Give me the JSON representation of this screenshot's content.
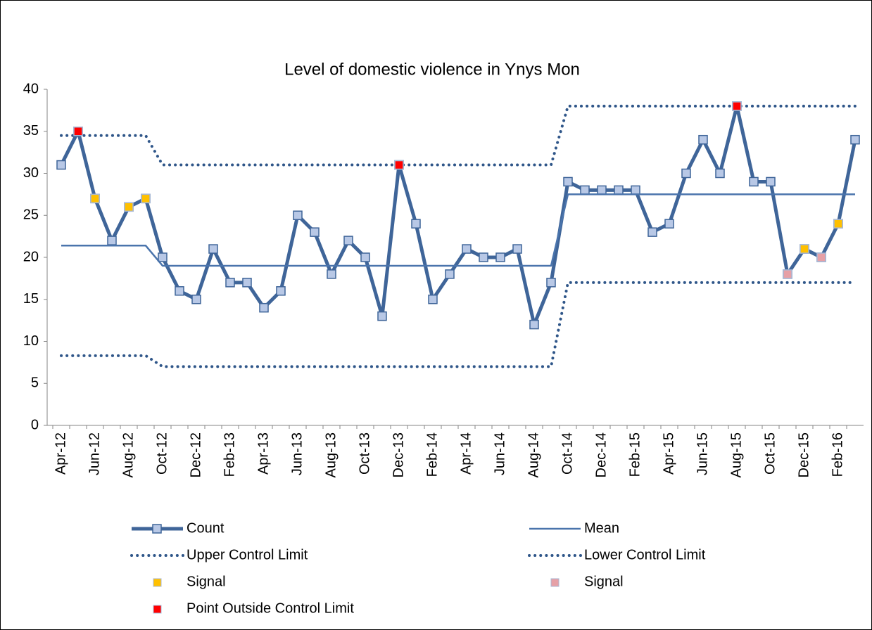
{
  "chart_data": {
    "type": "line",
    "title": "Level of domestic violence in Ynys Mon",
    "categories": [
      "Apr-12",
      null,
      "Jun-12",
      null,
      "Aug-12",
      null,
      "Oct-12",
      null,
      "Dec-12",
      null,
      "Feb-13",
      null,
      "Apr-13",
      null,
      "Jun-13",
      null,
      "Aug-13",
      null,
      "Oct-13",
      null,
      "Dec-13",
      null,
      "Feb-14",
      null,
      "Apr-14",
      null,
      "Jun-14",
      null,
      "Aug-14",
      null,
      "Oct-14",
      null,
      "Dec-14",
      null,
      "Feb-15",
      null,
      "Apr-15",
      null,
      "Jun-15",
      null,
      "Aug-15",
      null,
      "Oct-15",
      null,
      "Dec-15",
      null,
      "Feb-16",
      null
    ],
    "ylim": [
      0,
      40
    ],
    "yticks": [
      0,
      5,
      10,
      15,
      20,
      25,
      30,
      35,
      40
    ],
    "series": [
      {
        "name": "Count",
        "style": "line-marker",
        "color": "#3f6599",
        "marker_color": "#b8c8e6",
        "values": [
          31,
          35,
          27,
          22,
          26,
          27,
          20,
          16,
          15,
          21,
          17,
          17,
          14,
          16,
          25,
          23,
          18,
          22,
          20,
          13,
          31,
          24,
          15,
          18,
          21,
          20,
          20,
          21,
          12,
          17,
          29,
          28,
          28,
          28,
          28,
          23,
          24,
          30,
          34,
          30,
          38,
          29,
          29,
          18,
          21,
          20,
          24,
          34
        ]
      },
      {
        "name": "Mean",
        "style": "line",
        "color": "#4a74ac",
        "values": [
          21.4,
          21.4,
          21.4,
          21.4,
          21.4,
          21.4,
          19,
          19,
          19,
          19,
          19,
          19,
          19,
          19,
          19,
          19,
          19,
          19,
          19,
          19,
          19,
          19,
          19,
          19,
          19,
          19,
          19,
          19,
          19,
          19,
          27.5,
          27.5,
          27.5,
          27.5,
          27.5,
          27.5,
          27.5,
          27.5,
          27.5,
          27.5,
          27.5,
          27.5,
          27.5,
          27.5,
          27.5,
          27.5,
          27.5,
          27.5
        ]
      },
      {
        "name": "Upper Control Limit",
        "style": "dotted",
        "color": "#2f5689",
        "values": [
          34.5,
          34.5,
          34.5,
          34.5,
          34.5,
          34.5,
          31,
          31,
          31,
          31,
          31,
          31,
          31,
          31,
          31,
          31,
          31,
          31,
          31,
          31,
          31,
          31,
          31,
          31,
          31,
          31,
          31,
          31,
          31,
          31,
          38,
          38,
          38,
          38,
          38,
          38,
          38,
          38,
          38,
          38,
          38,
          38,
          38,
          38,
          38,
          38,
          38,
          38
        ]
      },
      {
        "name": "Lower Control Limit",
        "style": "dotted",
        "color": "#2f5689",
        "values": [
          8.3,
          8.3,
          8.3,
          8.3,
          8.3,
          8.3,
          7,
          7,
          7,
          7,
          7,
          7,
          7,
          7,
          7,
          7,
          7,
          7,
          7,
          7,
          7,
          7,
          7,
          7,
          7,
          7,
          7,
          7,
          7,
          7,
          17,
          17,
          17,
          17,
          17,
          17,
          17,
          17,
          17,
          17,
          17,
          17,
          17,
          17,
          17,
          17,
          17,
          17
        ]
      },
      {
        "name": "Signal",
        "style": "marker",
        "color": "#ffc000",
        "values": [
          null,
          null,
          27,
          null,
          26,
          27,
          null,
          null,
          null,
          null,
          null,
          null,
          null,
          null,
          null,
          null,
          null,
          null,
          null,
          null,
          null,
          null,
          null,
          null,
          null,
          null,
          null,
          null,
          null,
          null,
          null,
          null,
          null,
          null,
          null,
          null,
          null,
          null,
          null,
          null,
          null,
          null,
          null,
          null,
          21,
          null,
          24,
          null
        ]
      },
      {
        "name": "Signal",
        "style": "marker",
        "color": "#e6a0a6",
        "values": [
          null,
          null,
          null,
          null,
          null,
          null,
          null,
          null,
          null,
          null,
          null,
          null,
          null,
          null,
          null,
          null,
          null,
          null,
          null,
          null,
          null,
          null,
          null,
          null,
          null,
          null,
          null,
          null,
          null,
          null,
          null,
          null,
          null,
          null,
          null,
          null,
          null,
          null,
          null,
          null,
          null,
          null,
          null,
          18,
          null,
          20,
          null,
          null
        ]
      },
      {
        "name": "Point Outside Control Limit",
        "style": "marker",
        "color": "#ff0000",
        "values": [
          null,
          35,
          null,
          null,
          null,
          null,
          null,
          null,
          null,
          null,
          null,
          null,
          null,
          null,
          null,
          null,
          null,
          null,
          null,
          null,
          31,
          null,
          null,
          null,
          null,
          null,
          null,
          null,
          null,
          null,
          null,
          null,
          null,
          null,
          null,
          null,
          null,
          null,
          null,
          null,
          38,
          null,
          null,
          null,
          null,
          null,
          null,
          null
        ]
      }
    ]
  }
}
